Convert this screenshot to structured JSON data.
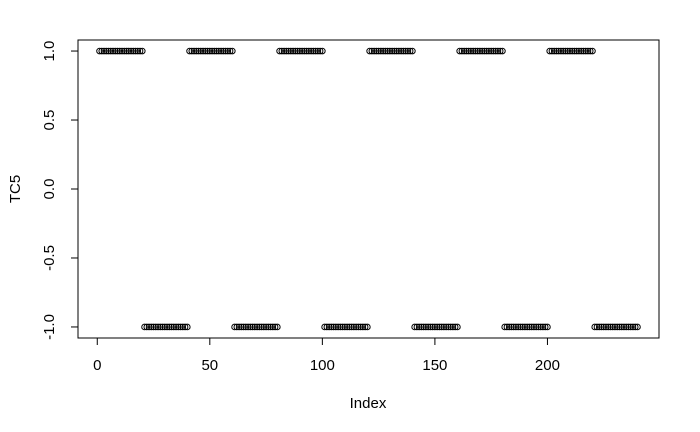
{
  "chart_data": {
    "type": "scatter",
    "title": "",
    "xlabel": "Index",
    "ylabel": "TC5",
    "xlim": [
      1,
      240
    ],
    "ylim": [
      -1,
      1
    ],
    "x_ticks": [
      0,
      50,
      100,
      150,
      200
    ],
    "y_ticks": [
      -1.0,
      -0.5,
      0.0,
      0.5,
      1.0
    ],
    "x_tick_labels": [
      "0",
      "50",
      "100",
      "150",
      "200"
    ],
    "y_tick_labels": [
      "-1.0",
      "-0.5",
      "0.0",
      "0.5",
      "1.0"
    ],
    "grid": false,
    "marker": "open-circle",
    "marker_color": "#000000",
    "series": [
      {
        "block_length": 20,
        "first_value": 1,
        "alternating_values": [
          1,
          -1
        ],
        "x": [
          1,
          240
        ]
      }
    ]
  }
}
